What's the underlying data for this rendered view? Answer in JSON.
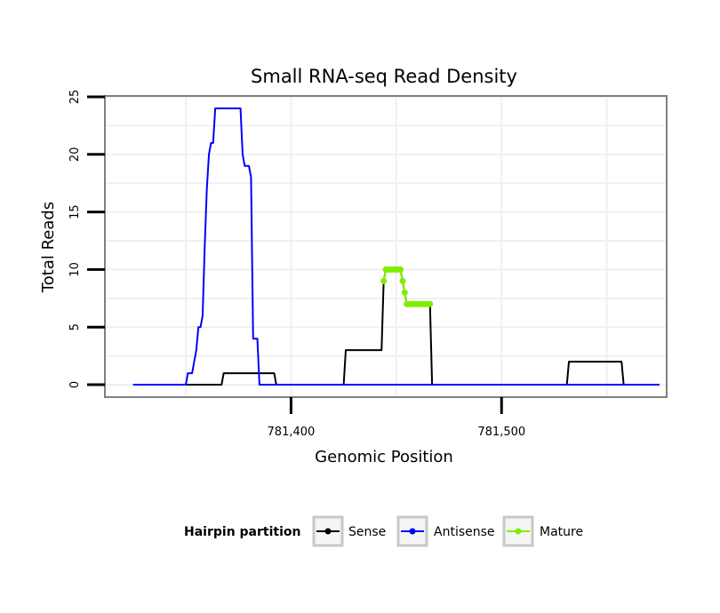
{
  "chart_data": {
    "type": "line",
    "title": "Small RNA-seq Read Density",
    "xlabel": "Genomic Position",
    "ylabel": "Total Reads",
    "xlim": [
      781312,
      781578
    ],
    "ylim": [
      -1,
      25
    ],
    "x_ticks": [
      781400,
      781500
    ],
    "x_tick_labels": [
      "781,400",
      "781,500"
    ],
    "y_ticks": [
      0,
      5,
      10,
      15,
      20,
      25
    ],
    "y_tick_labels": [
      "0",
      "5",
      "10",
      "15",
      "20",
      "25"
    ],
    "grid": true,
    "legend": {
      "title": "Hairpin partition",
      "placement": "bottom",
      "entries": [
        "Sense",
        "Antisense",
        "Mature"
      ]
    },
    "series": [
      {
        "name": "Sense",
        "color": "#000000",
        "marker": false,
        "points": [
          [
            781325,
            0
          ],
          [
            781367,
            0
          ],
          [
            781368,
            1
          ],
          [
            781392,
            1
          ],
          [
            781393,
            0
          ],
          [
            781425,
            0
          ],
          [
            781426,
            3
          ],
          [
            781443,
            3
          ],
          [
            781444,
            9
          ],
          [
            781445,
            10
          ],
          [
            781452,
            10
          ],
          [
            781453,
            9
          ],
          [
            781454,
            8
          ],
          [
            781455,
            7
          ],
          [
            781466,
            7
          ],
          [
            781467,
            0
          ],
          [
            781531,
            0
          ],
          [
            781532,
            2
          ],
          [
            781557,
            2
          ],
          [
            781558,
            0
          ],
          [
            781575,
            0
          ]
        ]
      },
      {
        "name": "Antisense",
        "color": "#0000ff",
        "marker": false,
        "points": [
          [
            781325,
            0
          ],
          [
            781350,
            0
          ],
          [
            781351,
            1
          ],
          [
            781353,
            1
          ],
          [
            781354,
            2
          ],
          [
            781355,
            3
          ],
          [
            781356,
            5
          ],
          [
            781357,
            5
          ],
          [
            781358,
            6
          ],
          [
            781359,
            12
          ],
          [
            781360,
            17
          ],
          [
            781361,
            20
          ],
          [
            781362,
            21
          ],
          [
            781363,
            21
          ],
          [
            781364,
            24
          ],
          [
            781376,
            24
          ],
          [
            781377,
            20
          ],
          [
            781378,
            19
          ],
          [
            781380,
            19
          ],
          [
            781381,
            18
          ],
          [
            781382,
            4
          ],
          [
            781384,
            4
          ],
          [
            781385,
            0
          ],
          [
            781575,
            0
          ]
        ]
      },
      {
        "name": "Mature",
        "color": "#80ee00",
        "marker": true,
        "points": [
          [
            781444,
            9
          ],
          [
            781445,
            10
          ],
          [
            781446,
            10
          ],
          [
            781447,
            10
          ],
          [
            781448,
            10
          ],
          [
            781449,
            10
          ],
          [
            781450,
            10
          ],
          [
            781451,
            10
          ],
          [
            781452,
            10
          ],
          [
            781453,
            9
          ],
          [
            781454,
            8
          ],
          [
            781455,
            7
          ],
          [
            781456,
            7
          ],
          [
            781457,
            7
          ],
          [
            781458,
            7
          ],
          [
            781459,
            7
          ],
          [
            781460,
            7
          ],
          [
            781461,
            7
          ],
          [
            781462,
            7
          ],
          [
            781463,
            7
          ],
          [
            781464,
            7
          ],
          [
            781465,
            7
          ],
          [
            781466,
            7
          ]
        ]
      }
    ]
  }
}
